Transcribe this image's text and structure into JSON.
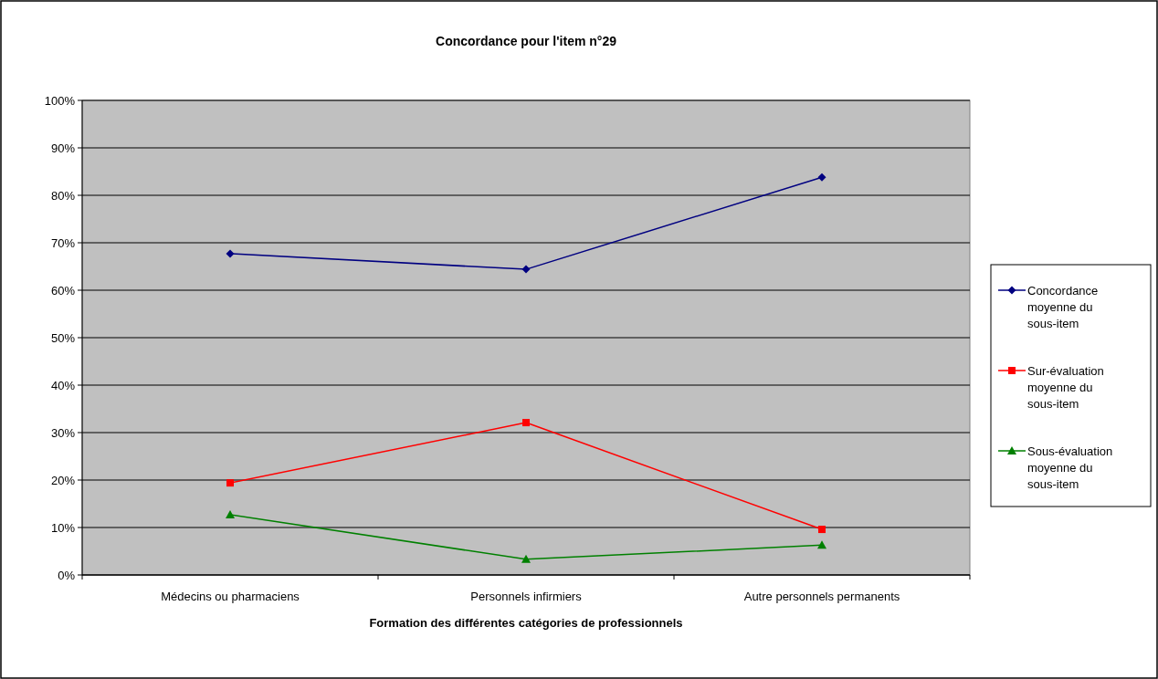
{
  "chart_data": {
    "type": "line",
    "title": "Concordance pour l'item n°29",
    "xlabel": "Formation des différentes catégories de professionnels",
    "categories": [
      "Médecins ou pharmaciens",
      "Personnels infirmiers",
      "Autre personnels permanents"
    ],
    "series": [
      {
        "name": "Concordance moyenne du sous-item",
        "color": "#000080",
        "marker": "diamond",
        "values": [
          67.7,
          64.4,
          83.8
        ]
      },
      {
        "name": "Sur-évaluation moyenne du sous-item",
        "color": "#ff0000",
        "marker": "square",
        "values": [
          19.4,
          32.1,
          9.6
        ]
      },
      {
        "name": "Sous-évaluation moyenne du sous-item",
        "color": "#008000",
        "marker": "triangle",
        "values": [
          12.7,
          3.3,
          6.3
        ]
      }
    ],
    "ylim": [
      0,
      100
    ],
    "yticks": [
      {
        "value": 0,
        "label": "0%"
      },
      {
        "value": 10,
        "label": "10%"
      },
      {
        "value": 20,
        "label": "20%"
      },
      {
        "value": 30,
        "label": "30%"
      },
      {
        "value": 40,
        "label": "40%"
      },
      {
        "value": 50,
        "label": "50%"
      },
      {
        "value": 60,
        "label": "60%"
      },
      {
        "value": 70,
        "label": "70%"
      },
      {
        "value": 80,
        "label": "80%"
      },
      {
        "value": 90,
        "label": "90%"
      },
      {
        "value": 100,
        "label": "100%"
      }
    ],
    "grid": "y",
    "legend": "right"
  }
}
